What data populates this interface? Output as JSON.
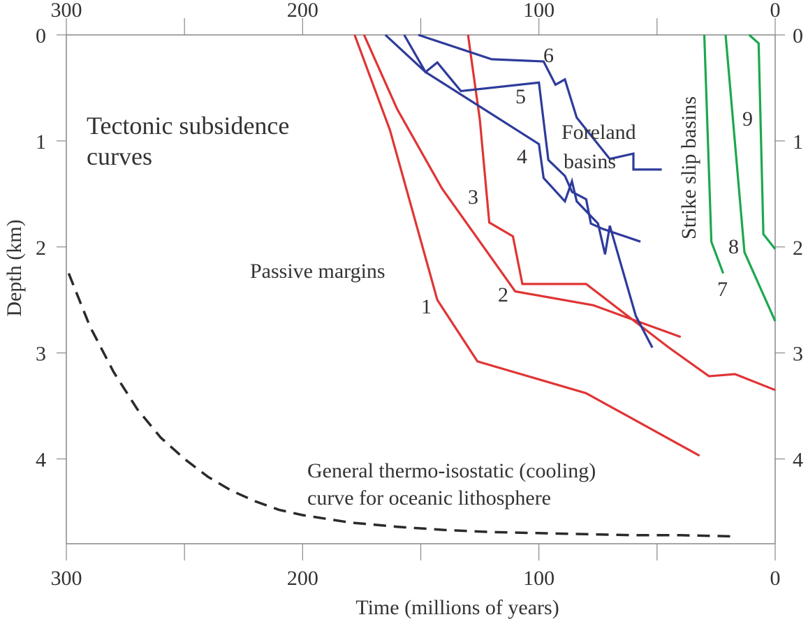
{
  "chart_data": {
    "type": "line",
    "title": "",
    "xlabel": "Time (millions of years)",
    "ylabel": "Depth (km)",
    "xlim": [
      300,
      0
    ],
    "ylim": [
      0,
      4.8
    ],
    "x_ticks": [
      300,
      200,
      100,
      0
    ],
    "x_tick_labels": [
      "300",
      "200",
      "100",
      "0"
    ],
    "y_ticks": [
      0,
      1,
      2,
      3,
      4
    ],
    "y_tick_labels": [
      "0",
      "1",
      "2",
      "3",
      "4"
    ],
    "grid": false,
    "colors": {
      "passive": "#e03434",
      "foreland": "#2e3b9b",
      "strike_slip": "#1ca84e",
      "cooling": "#2a2a2a",
      "axis": "#888888"
    },
    "annotations": {
      "main_title_line1": "Tectonic subsidence",
      "main_title_line2": "curves",
      "passive": "Passive margins",
      "foreland_line1": "Foreland",
      "foreland_line2": "basins",
      "strike_slip": "Strike slip basins",
      "cooling_line1": "General thermo-isostatic (cooling)",
      "cooling_line2": "curve for oceanic lithosphere"
    },
    "series": [
      {
        "name": "1",
        "group": "passive",
        "x": [
          178,
          163,
          143,
          126,
          80,
          32
        ],
        "y": [
          0,
          0.9,
          2.5,
          3.08,
          3.38,
          3.97
        ]
      },
      {
        "name": "2",
        "group": "passive",
        "x": [
          174,
          160,
          141,
          110,
          77,
          40
        ],
        "y": [
          0,
          0.7,
          1.45,
          2.42,
          2.55,
          2.85
        ]
      },
      {
        "name": "3",
        "group": "passive",
        "x": [
          130,
          125,
          121,
          111,
          107,
          80,
          45,
          28,
          17,
          0
        ],
        "y": [
          0,
          0.8,
          1.77,
          1.9,
          2.35,
          2.35,
          2.95,
          3.22,
          3.2,
          3.35
        ]
      },
      {
        "name": "4",
        "group": "foreland",
        "x": [
          165,
          148,
          100,
          98,
          89,
          86,
          84,
          75,
          72,
          70,
          59,
          52
        ],
        "y": [
          0,
          0.35,
          1.03,
          1.35,
          1.57,
          1.38,
          1.57,
          1.78,
          2.07,
          1.8,
          2.65,
          2.95
        ]
      },
      {
        "name": "5",
        "group": "foreland",
        "x": [
          157,
          148,
          143,
          133,
          100,
          96,
          89,
          86,
          80,
          78,
          73,
          57
        ],
        "y": [
          0,
          0.35,
          0.26,
          0.53,
          0.45,
          1.18,
          1.33,
          1.48,
          1.55,
          1.78,
          1.83,
          1.95
        ]
      },
      {
        "name": "6",
        "group": "foreland",
        "x": [
          151,
          120,
          98,
          93,
          89,
          84,
          70,
          60,
          60,
          48
        ],
        "y": [
          0,
          0.23,
          0.25,
          0.47,
          0.42,
          0.78,
          1.17,
          1.12,
          1.27,
          1.27
        ]
      },
      {
        "name": "7",
        "group": "strike_slip",
        "x": [
          30,
          27,
          22
        ],
        "y": [
          0,
          1.95,
          2.25
        ]
      },
      {
        "name": "8",
        "group": "strike_slip",
        "x": [
          21,
          13,
          0
        ],
        "y": [
          0,
          2.05,
          2.7
        ]
      },
      {
        "name": "9",
        "group": "strike_slip",
        "x": [
          11,
          7,
          5,
          0
        ],
        "y": [
          0,
          0.08,
          1.88,
          2.02
        ]
      },
      {
        "name": "",
        "group": "cooling",
        "style": "dashed",
        "x": [
          299,
          290,
          280,
          270,
          260,
          250,
          240,
          230,
          220,
          210,
          200,
          180,
          160,
          140,
          120,
          100,
          80,
          60,
          40,
          18
        ],
        "y": [
          2.25,
          2.75,
          3.18,
          3.53,
          3.8,
          4.0,
          4.17,
          4.3,
          4.4,
          4.48,
          4.53,
          4.6,
          4.64,
          4.67,
          4.69,
          4.7,
          4.71,
          4.72,
          4.72,
          4.73
        ]
      }
    ]
  }
}
